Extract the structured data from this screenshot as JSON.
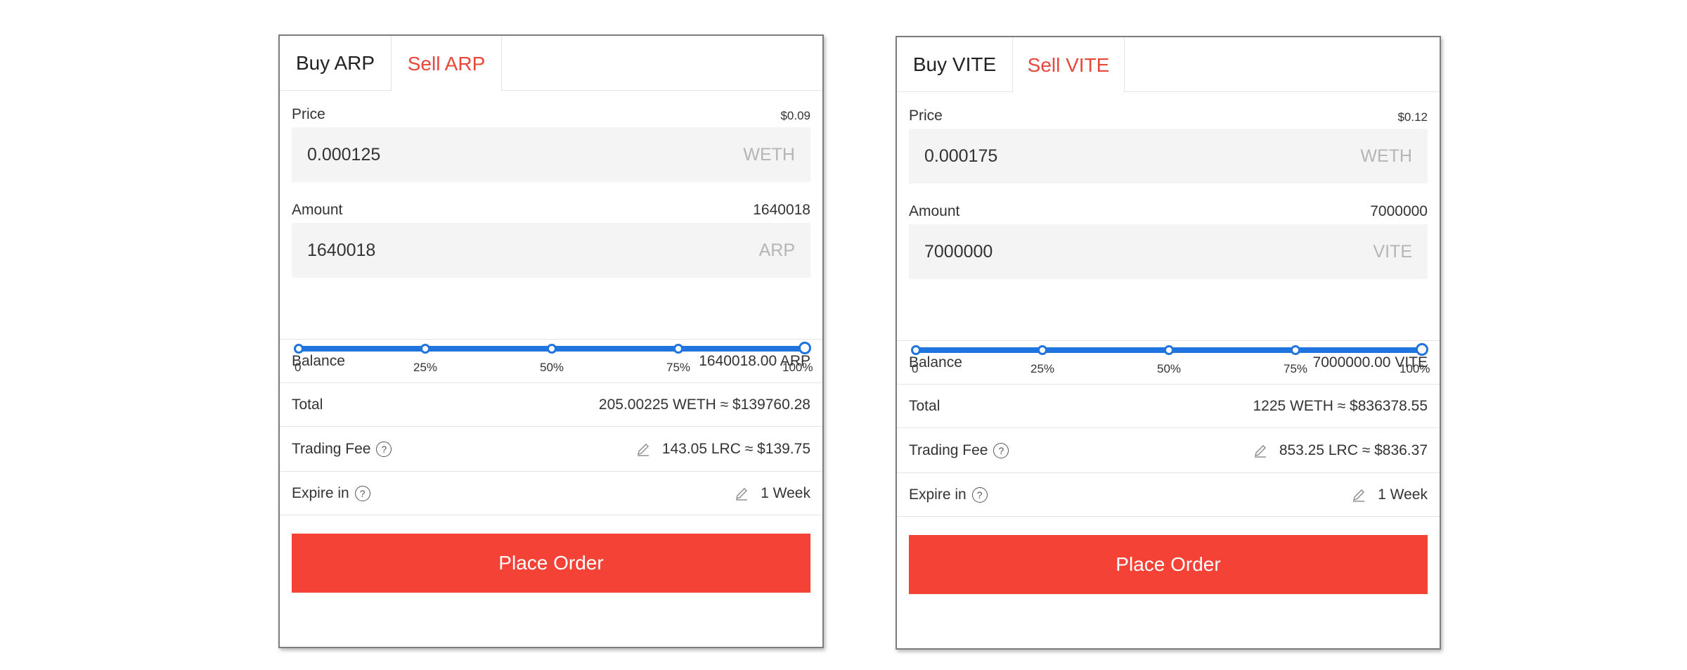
{
  "panels": [
    {
      "tabs": {
        "buy": "Buy ARP",
        "sell": "Sell ARP"
      },
      "price": {
        "label": "Price",
        "usd": "$0.09",
        "value": "0.000125",
        "unit": "WETH"
      },
      "amount": {
        "label": "Amount",
        "max": "1640018",
        "value": "1640018",
        "unit": "ARP"
      },
      "slider": {
        "ticks": [
          "0",
          "25%",
          "50%",
          "75%",
          "100%"
        ],
        "level": 1.0
      },
      "balance": {
        "label": "Balance",
        "value": "1640018.00 ARP"
      },
      "total": {
        "label": "Total",
        "value": "205.00225 WETH ≈ $139760.28"
      },
      "fee": {
        "label": "Trading Fee",
        "value": "143.05 LRC ≈ $139.75"
      },
      "expire": {
        "label": "Expire in",
        "value": "1 Week"
      },
      "button": "Place Order"
    },
    {
      "tabs": {
        "buy": "Buy VITE",
        "sell": "Sell VITE"
      },
      "price": {
        "label": "Price",
        "usd": "$0.12",
        "value": "0.000175",
        "unit": "WETH"
      },
      "amount": {
        "label": "Amount",
        "max": "7000000",
        "value": "7000000",
        "unit": "VITE"
      },
      "slider": {
        "ticks": [
          "0",
          "25%",
          "50%",
          "75%",
          "100%"
        ],
        "level": 1.0
      },
      "balance": {
        "label": "Balance",
        "value": "7000000.00 VITE"
      },
      "total": {
        "label": "Total",
        "value": "1225 WETH ≈ $836378.55"
      },
      "fee": {
        "label": "Trading Fee",
        "value": "853.25 LRC ≈ $836.37"
      },
      "expire": {
        "label": "Expire in",
        "value": "1 Week"
      },
      "button": "Place Order"
    }
  ],
  "colors": {
    "accent_red": "#f44336",
    "sell_tab": "#e8473a",
    "slider_blue": "#1f74e0"
  },
  "icons": {
    "help": "question-circle-icon",
    "edit": "pencil-icon"
  }
}
